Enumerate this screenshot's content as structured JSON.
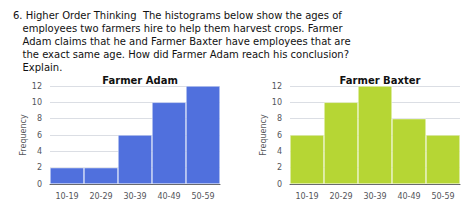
{
  "title": "6. Higher Order Thinking  The histograms below show the ages of\n   employees two farmers hire to help them harvest crops. Farmer\n   Adam claims that he and Farmer Baxter have employees that are\n   the exact same age. How did Farmer Adam reach his conclusion?\n   Explain.",
  "chart_data": [
    {
      "type": "bar",
      "title": "Farmer Adam",
      "categories": [
        "10-19",
        "20-29",
        "30-39",
        "40-49",
        "50-59"
      ],
      "values": [
        2,
        2,
        6,
        10,
        12
      ],
      "ylabel": "Frequency",
      "ylim": [
        0,
        12
      ],
      "yticks": [
        0,
        2,
        4,
        6,
        8,
        10,
        12
      ],
      "grid": true
    },
    {
      "type": "bar",
      "title": "Farmer Baxter",
      "categories": [
        "10-19",
        "20-29",
        "30-39",
        "40-49",
        "50-59"
      ],
      "values": [
        6,
        10,
        12,
        8,
        6
      ],
      "ylabel": "Frequency",
      "ylim": [
        0,
        12
      ],
      "yticks": [
        0,
        2,
        4,
        6,
        8,
        10,
        12
      ],
      "grid": true
    }
  ]
}
